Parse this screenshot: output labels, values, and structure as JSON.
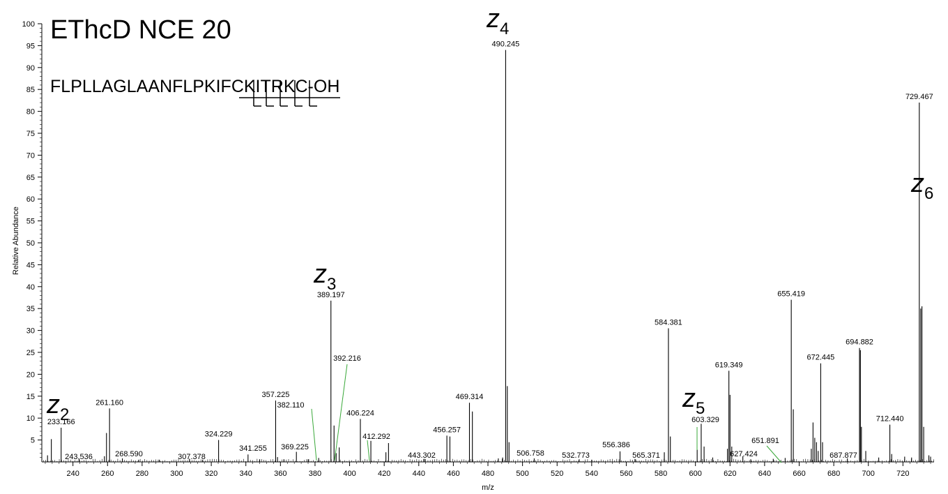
{
  "chart_data": {
    "type": "bar",
    "title": "EThcD NCE 20",
    "sequence": "FLPLLAGLAANFLPKIFCKITRKC-OH",
    "xlabel": "m/z",
    "ylabel": "Relative Abundance",
    "xlim": [
      222,
      738
    ],
    "ylim": [
      0,
      100
    ],
    "x_ticks": [
      240,
      260,
      280,
      300,
      320,
      340,
      360,
      380,
      400,
      420,
      440,
      460,
      480,
      500,
      520,
      540,
      560,
      580,
      600,
      620,
      640,
      660,
      680,
      700,
      720
    ],
    "y_ticks": [
      5,
      10,
      15,
      20,
      25,
      30,
      35,
      40,
      45,
      50,
      55,
      60,
      65,
      70,
      75,
      80,
      85,
      90,
      95,
      100
    ],
    "grid": false,
    "annotation_color": "#39a839",
    "peaks": [
      {
        "mz": 225.3,
        "intensity": 1.5
      },
      {
        "mz": 227.5,
        "intensity": 5.2
      },
      {
        "mz": 233.166,
        "intensity": 7.8,
        "label": "233.166"
      },
      {
        "mz": 243.536,
        "intensity": 0.7,
        "label": "243.536"
      },
      {
        "mz": 258.2,
        "intensity": 1.3
      },
      {
        "mz": 259.4,
        "intensity": 6.6
      },
      {
        "mz": 261.16,
        "intensity": 12.2,
        "label": "261.160"
      },
      {
        "mz": 268.59,
        "intensity": 0.8,
        "label": "268.590"
      },
      {
        "mz": 278.0,
        "intensity": 0.5
      },
      {
        "mz": 290.0,
        "intensity": 0.5
      },
      {
        "mz": 307.378,
        "intensity": 0.7,
        "label": "307.378"
      },
      {
        "mz": 315.0,
        "intensity": 0.5
      },
      {
        "mz": 324.229,
        "intensity": 5.0,
        "label": "324.229"
      },
      {
        "mz": 341.255,
        "intensity": 1.7,
        "label": "341.255"
      },
      {
        "mz": 348.0,
        "intensity": 0.6
      },
      {
        "mz": 357.225,
        "intensity": 14.0,
        "label": "357.225"
      },
      {
        "mz": 358.3,
        "intensity": 1.1
      },
      {
        "mz": 362.0,
        "intensity": 0.6
      },
      {
        "mz": 369.225,
        "intensity": 2.3,
        "label": "369.225"
      },
      {
        "mz": 376.0,
        "intensity": 0.6
      },
      {
        "mz": 382.11,
        "intensity": 0.9,
        "label": "382.110"
      },
      {
        "mz": 389.197,
        "intensity": 36.8,
        "label": "389.197"
      },
      {
        "mz": 391.0,
        "intensity": 8.3
      },
      {
        "mz": 392.216,
        "intensity": 2.0,
        "label": "392.216"
      },
      {
        "mz": 394.0,
        "intensity": 3.3
      },
      {
        "mz": 406.224,
        "intensity": 9.8,
        "label": "406.224"
      },
      {
        "mz": 412.292,
        "intensity": 4.8,
        "label": "412.292"
      },
      {
        "mz": 421.0,
        "intensity": 2.2
      },
      {
        "mz": 422.5,
        "intensity": 4.3
      },
      {
        "mz": 443.302,
        "intensity": 0.7,
        "label": "443.302"
      },
      {
        "mz": 456.257,
        "intensity": 6.0,
        "label": "456.257"
      },
      {
        "mz": 458.0,
        "intensity": 5.8
      },
      {
        "mz": 469.314,
        "intensity": 13.5,
        "label": "469.314"
      },
      {
        "mz": 471.0,
        "intensity": 11.5
      },
      {
        "mz": 486.0,
        "intensity": 0.8
      },
      {
        "mz": 488.5,
        "intensity": 1.0
      },
      {
        "mz": 490.245,
        "intensity": 94.0,
        "label": "490.245"
      },
      {
        "mz": 491.2,
        "intensity": 17.3
      },
      {
        "mz": 492.2,
        "intensity": 4.5
      },
      {
        "mz": 506.758,
        "intensity": 0.8,
        "label": "506.758"
      },
      {
        "mz": 532.773,
        "intensity": 0.6,
        "label": "532.773"
      },
      {
        "mz": 540.0,
        "intensity": 0.5
      },
      {
        "mz": 556.386,
        "intensity": 2.4,
        "label": "556.386"
      },
      {
        "mz": 565.371,
        "intensity": 0.6,
        "label": "565.371"
      },
      {
        "mz": 582.0,
        "intensity": 2.2
      },
      {
        "mz": 584.381,
        "intensity": 30.5,
        "label": "584.381"
      },
      {
        "mz": 585.5,
        "intensity": 5.8
      },
      {
        "mz": 601.0,
        "intensity": 2.8
      },
      {
        "mz": 603.329,
        "intensity": 8.7,
        "label": "603.329"
      },
      {
        "mz": 605.0,
        "intensity": 3.5
      },
      {
        "mz": 610.0,
        "intensity": 1.0
      },
      {
        "mz": 618.5,
        "intensity": 3.0
      },
      {
        "mz": 619.349,
        "intensity": 20.8,
        "label": "619.349"
      },
      {
        "mz": 620.0,
        "intensity": 15.3
      },
      {
        "mz": 621.0,
        "intensity": 3.5
      },
      {
        "mz": 627.424,
        "intensity": 1.3,
        "label": "627.424"
      },
      {
        "mz": 632.0,
        "intensity": 0.6
      },
      {
        "mz": 645.0,
        "intensity": 0.7
      },
      {
        "mz": 651.891,
        "intensity": 0.9,
        "label": "651.891"
      },
      {
        "mz": 655.419,
        "intensity": 37.0,
        "label": "655.419"
      },
      {
        "mz": 656.6,
        "intensity": 12.0
      },
      {
        "mz": 667.0,
        "intensity": 3.0
      },
      {
        "mz": 668.0,
        "intensity": 9.0
      },
      {
        "mz": 669.0,
        "intensity": 5.5
      },
      {
        "mz": 670.0,
        "intensity": 4.5
      },
      {
        "mz": 671.0,
        "intensity": 2.5
      },
      {
        "mz": 672.445,
        "intensity": 22.5,
        "label": "672.445"
      },
      {
        "mz": 673.5,
        "intensity": 4.5
      },
      {
        "mz": 687.877,
        "intensity": 0.8,
        "label": "687.877"
      },
      {
        "mz": 694.882,
        "intensity": 26.0,
        "label": "694.882"
      },
      {
        "mz": 695.4,
        "intensity": 25.5
      },
      {
        "mz": 696.0,
        "intensity": 8.0
      },
      {
        "mz": 698.5,
        "intensity": 2.5
      },
      {
        "mz": 706.0,
        "intensity": 1.0
      },
      {
        "mz": 712.44,
        "intensity": 8.5,
        "label": "712.440"
      },
      {
        "mz": 713.5,
        "intensity": 1.8
      },
      {
        "mz": 721.0,
        "intensity": 1.2
      },
      {
        "mz": 725.0,
        "intensity": 1.0
      },
      {
        "mz": 729.467,
        "intensity": 82.0,
        "label": "729.467"
      },
      {
        "mz": 730.3,
        "intensity": 35.0
      },
      {
        "mz": 731.0,
        "intensity": 35.5
      },
      {
        "mz": 732.0,
        "intensity": 8.0
      },
      {
        "mz": 735.0,
        "intensity": 1.5
      },
      {
        "mz": 736.0,
        "intensity": 1.2
      }
    ],
    "ion_annotations": [
      {
        "ion": "z",
        "sub": "2",
        "mz": 233.166
      },
      {
        "ion": "z",
        "sub": "3",
        "mz": 389.197
      },
      {
        "ion": "z",
        "sub": "4",
        "mz": 490.245
      },
      {
        "ion": "z",
        "sub": "5",
        "mz": 603.329
      },
      {
        "ion": "z",
        "sub": "6",
        "mz": 729.467
      }
    ]
  }
}
